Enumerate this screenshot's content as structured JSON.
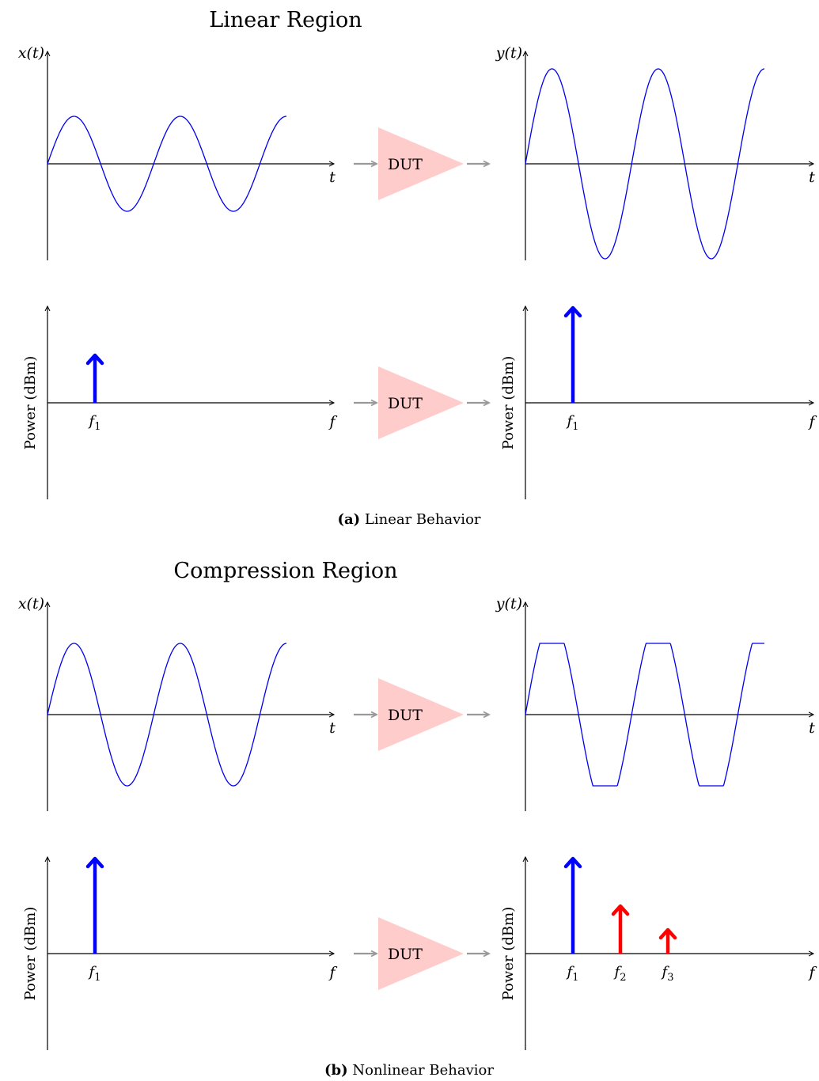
{
  "colors": {
    "signal": "#0000ee",
    "fundamental": "#0000ff",
    "harmonic": "#ff0000",
    "dut_fill": "#ffcccc",
    "connector": "#999999",
    "compression_label": "#ff0000",
    "axis": "#000000"
  },
  "panels": [
    {
      "id": "a",
      "region_label": "Linear Region",
      "caption_tag": "(a)",
      "caption_text": "Linear Behavior",
      "input_time": {
        "ylabel": "x(t)",
        "xlabel": "t",
        "amplitude": 1,
        "clip": 1
      },
      "output_time": {
        "ylabel": "y(t)",
        "xlabel": "t",
        "amplitude": 2,
        "clip": 2
      },
      "input_spectrum": {
        "ylabel": "Power (dBm)",
        "xlabel": "f",
        "tones": [
          {
            "label": "f1",
            "sub": "1",
            "power": 1,
            "kind": "fundamental"
          }
        ]
      },
      "output_spectrum": {
        "ylabel": "Power (dBm)",
        "xlabel": "f",
        "tones": [
          {
            "label": "f1",
            "sub": "1",
            "power": 2,
            "kind": "fundamental"
          }
        ]
      },
      "dut_label_time": "DUT",
      "dut_label_spectrum": "DUT"
    },
    {
      "id": "b",
      "region_label": "Compression Region",
      "caption_tag": "(b)",
      "caption_text": "Nonlinear Behavior",
      "input_time": {
        "ylabel": "x(t)",
        "xlabel": "t",
        "amplitude": 1.5,
        "clip": 1.5
      },
      "output_time": {
        "ylabel": "y(t)",
        "xlabel": "t",
        "amplitude": 2,
        "clip": 1.5
      },
      "input_spectrum": {
        "ylabel": "Power (dBm)",
        "xlabel": "f",
        "tones": [
          {
            "label": "f1",
            "sub": "1",
            "power": 2,
            "kind": "fundamental"
          }
        ]
      },
      "output_spectrum": {
        "ylabel": "Power (dBm)",
        "xlabel": "f",
        "tones": [
          {
            "label": "f1",
            "sub": "1",
            "power": 2,
            "kind": "fundamental"
          },
          {
            "label": "f2",
            "sub": "2",
            "power": 1,
            "kind": "harmonic"
          },
          {
            "label": "f3",
            "sub": "3",
            "power": 0.5,
            "kind": "harmonic"
          }
        ]
      },
      "dut_label_time": "DUT",
      "dut_label_spectrum": "DUT"
    }
  ]
}
